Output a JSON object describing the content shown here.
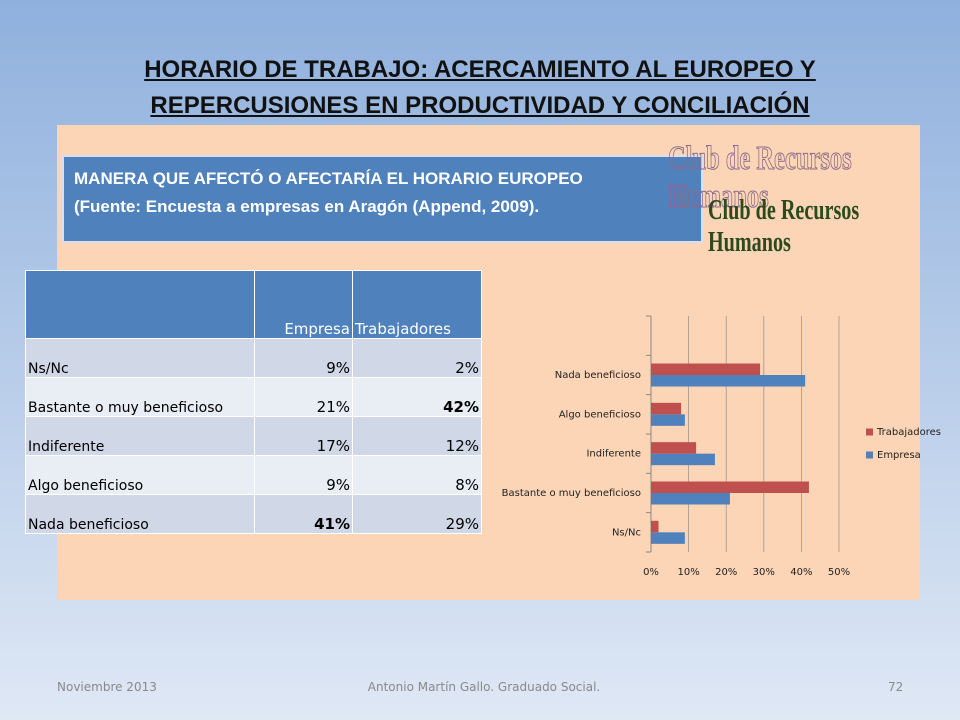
{
  "header": {
    "title": [
      "HORARIO DE TRABAJO: ACERCAMIENTO AL EUROPEO Y",
      "REPERCUSIONES EN PRODUCTIVIDAD Y CONCILIACIÓN"
    ]
  },
  "box": {
    "lines": [
      "MANERA QUE AFECTÓ O AFECTARÍA EL HORARIO EUROPEO",
      "(Fuente: Encuesta a empresas en Aragón (Append, 2009)."
    ]
  },
  "logo": "Club de Recursos Humanos",
  "table": {
    "columns": [
      "Empresa",
      "Trabajadores"
    ],
    "rows": [
      [
        "Ns/Nc",
        "9%",
        "2%"
      ],
      [
        "Bastante o muy beneficioso",
        "21%",
        "42%"
      ],
      [
        "Indiferente",
        "17%",
        "12%"
      ],
      [
        "Algo beneficioso",
        "9%",
        "8%"
      ],
      [
        "Nada beneficioso",
        "41%",
        "29%"
      ]
    ]
  },
  "chart_data": {
    "type": "hbar",
    "categories": [
      "Ns/Nc",
      "Bastante o muy beneficioso",
      "Indiferente",
      "Algo beneficioso",
      "Nada beneficioso"
    ],
    "series": [
      {
        "name": "Empresa",
        "color": "#4f81bd",
        "values": [
          9,
          21,
          17,
          9,
          41
        ]
      },
      {
        "name": "Trabajadores",
        "color": "#c0504d",
        "values": [
          2,
          42,
          12,
          8,
          29
        ]
      }
    ],
    "xlim": [
      0,
      50
    ],
    "xticks": [
      {
        "value": 0,
        "label": "0%"
      },
      {
        "value": 10,
        "label": "10%"
      },
      {
        "value": 20,
        "label": "20%"
      },
      {
        "value": 30,
        "label": "30%"
      },
      {
        "value": 40,
        "label": "40%"
      },
      {
        "value": 50,
        "label": "50%"
      }
    ],
    "grid": true,
    "legend": "right"
  },
  "footer": {
    "date": "Noviembre 2013",
    "author": "Antonio Martín Gallo. Graduado Social.",
    "page": "72"
  }
}
